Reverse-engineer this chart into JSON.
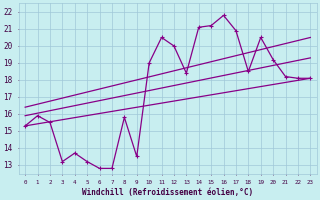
{
  "xlabel": "Windchill (Refroidissement éolien,°C)",
  "bg_color": "#c8eef0",
  "grid_color": "#a0c8d8",
  "line_color": "#880088",
  "xlim": [
    -0.5,
    23.5
  ],
  "ylim": [
    12.5,
    22.5
  ],
  "yticks": [
    13,
    14,
    15,
    16,
    17,
    18,
    19,
    20,
    21,
    22
  ],
  "xticks": [
    0,
    1,
    2,
    3,
    4,
    5,
    6,
    7,
    8,
    9,
    10,
    11,
    12,
    13,
    14,
    15,
    16,
    17,
    18,
    19,
    20,
    21,
    22,
    23
  ],
  "series1_x": [
    0,
    1,
    2,
    3,
    4,
    5,
    6,
    7,
    8,
    9,
    10,
    11,
    12,
    13,
    14,
    15,
    16,
    17,
    18,
    19,
    20,
    21,
    22,
    23
  ],
  "series1_y": [
    15.3,
    15.9,
    15.5,
    13.2,
    13.7,
    13.2,
    12.8,
    12.8,
    15.8,
    13.5,
    19.0,
    20.5,
    20.0,
    18.4,
    21.1,
    21.2,
    21.8,
    20.9,
    18.5,
    20.5,
    19.2,
    18.2,
    18.1,
    18.1
  ],
  "reg_line1_x": [
    0,
    23
  ],
  "reg_line1_y": [
    15.3,
    18.1
  ],
  "reg_line2_x": [
    0,
    23
  ],
  "reg_line2_y": [
    15.9,
    19.3
  ],
  "reg_line3_x": [
    0,
    23
  ],
  "reg_line3_y": [
    16.4,
    20.5
  ]
}
